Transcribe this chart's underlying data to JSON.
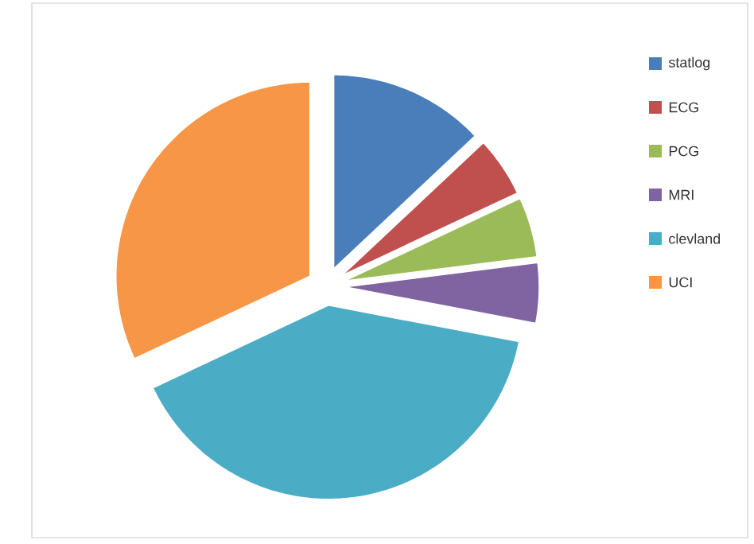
{
  "chart_data": {
    "type": "pie",
    "categories": [
      "statlog",
      "ECG",
      "PCG",
      "MRI",
      "clevland",
      "UCI"
    ],
    "values": [
      13,
      5,
      5,
      5,
      40,
      32
    ],
    "colors": [
      "#4a7ebb",
      "#c0504d",
      "#9bbb59",
      "#8064a2",
      "#4bacc6",
      "#f79646"
    ],
    "legend": "right"
  }
}
